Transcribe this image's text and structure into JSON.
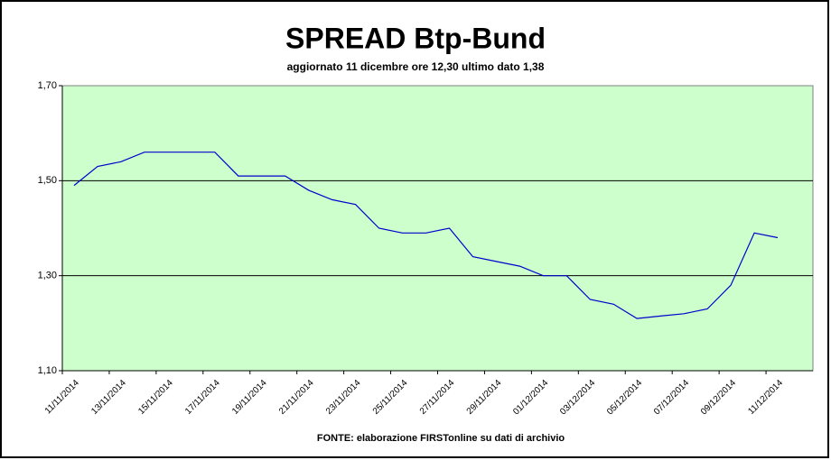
{
  "chart_data": {
    "type": "line",
    "title": "SPREAD Btp-Bund",
    "subtitle": "aggiornato 11 dicembre ore 12,30  ultimo dato  1,38",
    "source": "FONTE: elaborazione FIRSTonline su dati di archivio",
    "categories": [
      "11/11/2014",
      null,
      "13/11/2014",
      null,
      "15/11/2014",
      null,
      "17/11/2014",
      null,
      "19/11/2014",
      null,
      "21/11/2014",
      null,
      "23/11/2014",
      null,
      "25/11/2014",
      null,
      "27/11/2014",
      null,
      "29/11/2014",
      null,
      "01/12/2014",
      null,
      "03/12/2014",
      null,
      "05/12/2014",
      null,
      "07/12/2014",
      null,
      "09/12/2014",
      null,
      "11/12/2014",
      null
    ],
    "series": [
      {
        "name": "Spread",
        "color": "#0000cc",
        "values": [
          1.49,
          1.53,
          1.54,
          1.56,
          1.56,
          1.56,
          1.56,
          1.51,
          1.51,
          1.51,
          1.48,
          1.46,
          1.45,
          1.4,
          1.39,
          1.39,
          1.4,
          1.34,
          1.33,
          1.32,
          1.3,
          1.3,
          1.25,
          1.24,
          1.21,
          1.215,
          1.22,
          1.23,
          1.28,
          1.39,
          1.38,
          null
        ]
      }
    ],
    "ylim": [
      1.1,
      1.7
    ],
    "yticks": [
      {
        "value": 1.1,
        "label": "1,10"
      },
      {
        "value": 1.3,
        "label": "1,30"
      },
      {
        "value": 1.5,
        "label": "1,50"
      },
      {
        "value": 1.7,
        "label": "1,70"
      }
    ],
    "grid": true,
    "background": "#ccffcc"
  }
}
